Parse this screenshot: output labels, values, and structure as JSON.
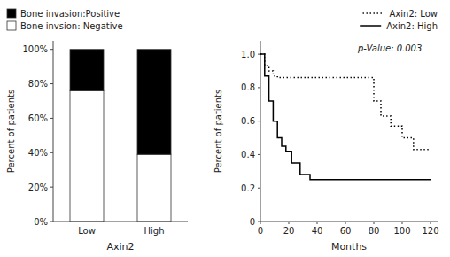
{
  "chart_data": [
    {
      "type": "bar",
      "stacked": true,
      "categories": [
        "Low",
        "High"
      ],
      "series": [
        {
          "name": "Bone invsion: Negative",
          "color": "#ffffff",
          "values": [
            0.76,
            0.39
          ]
        },
        {
          "name": "Bone invasion:Positive",
          "color": "#000000",
          "values": [
            0.24,
            0.61
          ]
        }
      ],
      "x_label": "Axin2",
      "y_label": "Percent of patients",
      "ylim": [
        0,
        1.05
      ],
      "yticks": [
        {
          "value": 0.0,
          "label": "0%"
        },
        {
          "value": 0.2,
          "label": "20%"
        },
        {
          "value": 0.4,
          "label": "40%"
        },
        {
          "value": 0.6,
          "label": "60%"
        },
        {
          "value": 0.8,
          "label": "80%"
        },
        {
          "value": 1.0,
          "label": "100%"
        }
      ],
      "legend": "upper left"
    },
    {
      "type": "line",
      "series": [
        {
          "name": "Axin2: Low",
          "color": "#000000",
          "line_style": "dotted",
          "x": [
            0,
            3,
            3,
            6,
            6,
            9,
            9,
            12,
            12,
            80,
            80,
            85,
            85,
            92,
            92,
            100,
            100,
            108,
            108,
            120
          ],
          "values": [
            1.0,
            1.0,
            0.93,
            0.93,
            0.9,
            0.9,
            0.87,
            0.87,
            0.86,
            0.86,
            0.72,
            0.72,
            0.63,
            0.63,
            0.57,
            0.57,
            0.5,
            0.5,
            0.43,
            0.43
          ]
        },
        {
          "name": "Axin2: High",
          "color": "#000000",
          "line_style": "solid",
          "x": [
            0,
            3,
            3,
            6,
            6,
            9,
            9,
            12,
            12,
            15,
            15,
            18,
            18,
            22,
            22,
            28,
            28,
            35,
            35,
            40,
            40,
            120
          ],
          "values": [
            1.0,
            1.0,
            0.87,
            0.87,
            0.72,
            0.72,
            0.6,
            0.6,
            0.5,
            0.5,
            0.45,
            0.45,
            0.42,
            0.42,
            0.35,
            0.35,
            0.28,
            0.28,
            0.25,
            0.25,
            0.25,
            0.25
          ]
        }
      ],
      "x_label": "Months",
      "y_label": "Percent of patients",
      "xlim": [
        0,
        125
      ],
      "ylim": [
        0,
        1.08
      ],
      "xticks": [
        0,
        20,
        40,
        60,
        80,
        100,
        120
      ],
      "yticks": [
        0,
        0.2,
        0.4,
        0.6,
        0.8,
        {
          "value": 1.0,
          "label": "1.0"
        }
      ],
      "legend": "upper right",
      "annotation": "p-Value: 0.003"
    }
  ]
}
